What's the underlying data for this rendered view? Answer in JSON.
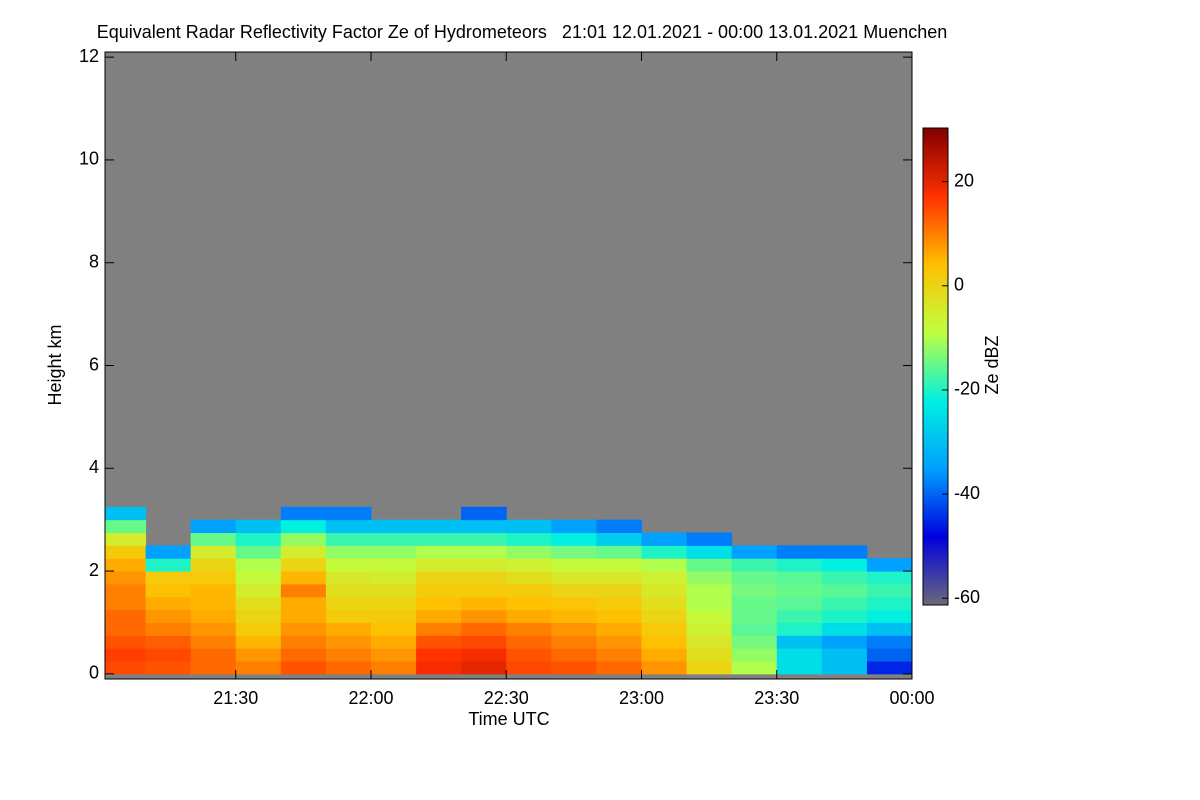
{
  "chart_data": {
    "type": "heatmap",
    "title": "Equivalent Radar Reflectivity Factor Ze of Hydrometeors   21:01 12.01.2021 - 00:00 13.01.2021 Muenchen",
    "xlabel": "Time UTC",
    "ylabel": "Height km",
    "colorbar_label": "Ze dBZ",
    "xlim": [
      21.0167,
      24
    ],
    "ylim": [
      -0.1,
      12.1
    ],
    "clim": [
      -61.3,
      30.3
    ],
    "xticks": [
      {
        "value": 21.5,
        "label": "21:30"
      },
      {
        "value": 22,
        "label": "22:00"
      },
      {
        "value": 22.5,
        "label": "22:30"
      },
      {
        "value": 23,
        "label": "23:00"
      },
      {
        "value": 23.5,
        "label": "23:30"
      },
      {
        "value": 24,
        "label": "00:00"
      }
    ],
    "yticks": [
      0,
      2,
      4,
      6,
      8,
      10,
      12
    ],
    "cticks": [
      -60,
      -40,
      -20,
      0,
      20
    ],
    "background_color": "#808080",
    "colormap": [
      "#6a6a7a",
      "#0000e0",
      "#00a0ff",
      "#00f0e0",
      "#c0ff40",
      "#ffc000",
      "#ff3000",
      "#800000"
    ],
    "x_edges": [
      21.0167,
      21.1667,
      21.3333,
      21.5,
      21.6667,
      21.8333,
      22,
      22.1667,
      22.3333,
      22.5,
      22.6667,
      22.8333,
      23,
      23.1667,
      23.3333,
      23.5,
      23.6667,
      23.8333,
      24
    ],
    "y_edges": [
      0,
      0.25,
      0.5,
      0.75,
      1,
      1.25,
      1.5,
      1.75,
      2,
      2.25,
      2.5,
      2.75,
      3,
      3.25
    ],
    "values": [
      [
        15,
        14,
        12,
        10,
        14,
        12,
        10,
        18,
        20,
        15,
        14,
        12,
        8,
        0,
        -10,
        -25,
        -30,
        -45
      ],
      [
        16,
        15,
        12,
        8,
        12,
        10,
        8,
        17,
        18,
        14,
        12,
        10,
        6,
        -2,
        -12,
        -25,
        -30,
        -40
      ],
      [
        14,
        13,
        10,
        5,
        10,
        8,
        6,
        14,
        15,
        12,
        10,
        8,
        4,
        -4,
        -14,
        -30,
        -35,
        -38
      ],
      [
        12,
        10,
        8,
        2,
        8,
        6,
        4,
        10,
        12,
        10,
        8,
        6,
        2,
        -6,
        -16,
        -20,
        -25,
        -30
      ],
      [
        12,
        8,
        6,
        0,
        6,
        2,
        2,
        6,
        8,
        6,
        5,
        4,
        0,
        -8,
        -15,
        -18,
        -20,
        -22
      ],
      [
        10,
        6,
        5,
        -2,
        6,
        0,
        0,
        4,
        5,
        4,
        3,
        2,
        -2,
        -10,
        -15,
        -16,
        -18,
        -20
      ],
      [
        10,
        4,
        5,
        -5,
        10,
        -2,
        -2,
        2,
        2,
        2,
        0,
        0,
        -4,
        -10,
        -14,
        -15,
        -16,
        -18
      ],
      [
        8,
        2,
        2,
        -8,
        5,
        -4,
        -5,
        0,
        0,
        -2,
        -4,
        -4,
        -6,
        -12,
        -15,
        -16,
        -18,
        -20
      ],
      [
        6,
        -20,
        0,
        -10,
        0,
        -8,
        -8,
        -5,
        -5,
        -6,
        -8,
        -8,
        -10,
        -15,
        -18,
        -20,
        -22,
        -35
      ],
      [
        2,
        -35,
        -5,
        -15,
        -5,
        -12,
        -12,
        -10,
        -10,
        -12,
        -14,
        -15,
        -20,
        -25,
        -35,
        -38,
        -38,
        null
      ],
      [
        -5,
        null,
        -15,
        -20,
        -12,
        -18,
        -18,
        -18,
        -18,
        -20,
        -22,
        -28,
        -35,
        -38,
        null,
        null,
        null,
        null
      ],
      [
        -15,
        null,
        -35,
        -30,
        -22,
        -30,
        -30,
        -30,
        -30,
        -30,
        -35,
        -38,
        null,
        null,
        null,
        null,
        null,
        null
      ],
      [
        -30,
        null,
        null,
        null,
        -38,
        -38,
        null,
        null,
        -40,
        null,
        null,
        null,
        null,
        null,
        null,
        null,
        null,
        null
      ]
    ]
  }
}
